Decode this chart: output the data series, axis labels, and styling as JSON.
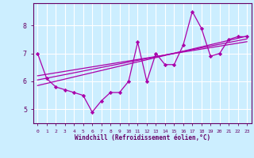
{
  "xlabel": "Windchill (Refroidissement éolien,°C)",
  "ylabel": "",
  "x_values": [
    0,
    1,
    2,
    3,
    4,
    5,
    6,
    7,
    8,
    9,
    10,
    11,
    12,
    13,
    14,
    15,
    16,
    17,
    18,
    19,
    20,
    21,
    22,
    23
  ],
  "y_values": [
    7.0,
    6.1,
    5.8,
    5.7,
    5.6,
    5.5,
    4.9,
    5.3,
    5.6,
    5.6,
    6.0,
    7.4,
    6.0,
    7.0,
    6.6,
    6.6,
    7.3,
    8.5,
    7.9,
    6.9,
    7.0,
    7.5,
    7.6,
    7.6
  ],
  "line_color": "#aa00aa",
  "marker_color": "#aa00aa",
  "bg_color": "#cceeff",
  "grid_color": "#ffffff",
  "axis_color": "#660066",
  "ylim": [
    4.5,
    8.8
  ],
  "xlim": [
    -0.5,
    23.5
  ],
  "trend_lines": [
    {
      "x_start": 0,
      "y_start": 5.85,
      "x_end": 23,
      "y_end": 7.62
    },
    {
      "x_start": 0,
      "y_start": 6.05,
      "x_end": 23,
      "y_end": 7.52
    },
    {
      "x_start": 0,
      "y_start": 6.2,
      "x_end": 23,
      "y_end": 7.42
    }
  ],
  "yticks": [
    5,
    6,
    7,
    8
  ],
  "xticks": [
    0,
    1,
    2,
    3,
    4,
    5,
    6,
    7,
    8,
    9,
    10,
    11,
    12,
    13,
    14,
    15,
    16,
    17,
    18,
    19,
    20,
    21,
    22,
    23
  ]
}
